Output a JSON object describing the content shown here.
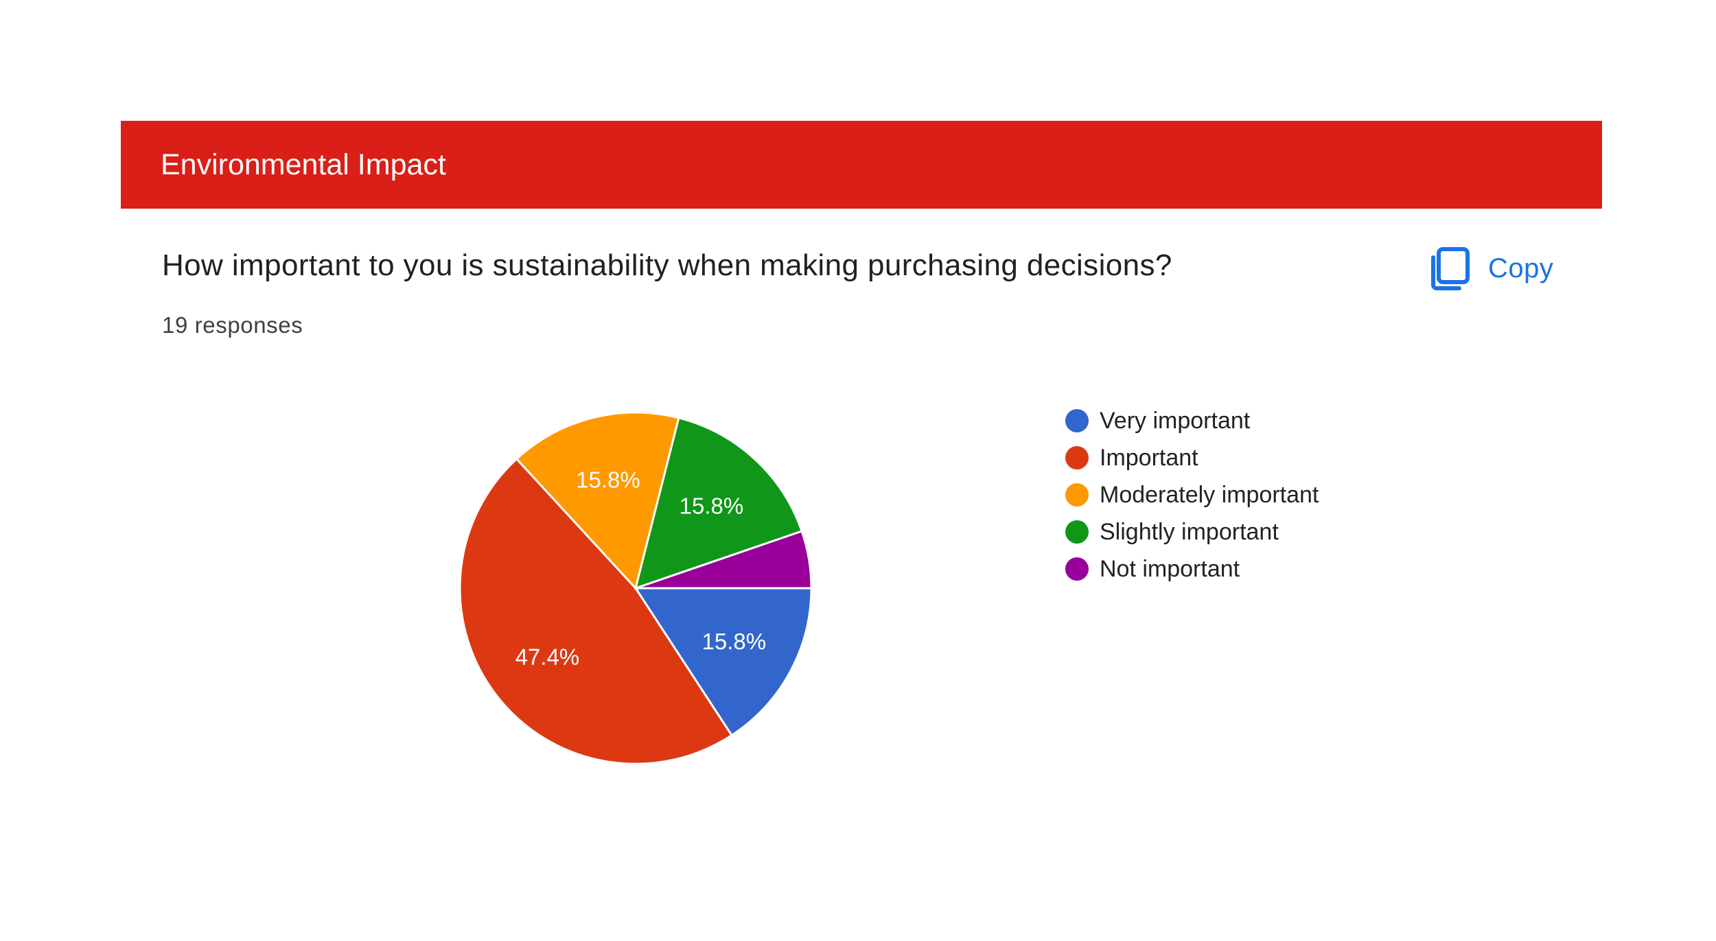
{
  "section": {
    "title": "Environmental Impact",
    "color": "#d91f18"
  },
  "question": {
    "title": "How important to you is sustainability when making purchasing decisions?",
    "responses": "19 responses"
  },
  "copy": {
    "label": "Copy",
    "icon": "copy-icon",
    "color": "#1a73e8"
  },
  "chart_data": {
    "type": "pie",
    "categories": [
      "Very important",
      "Important",
      "Moderately important",
      "Slightly important",
      "Not important"
    ],
    "values": [
      3,
      9,
      3,
      3,
      1
    ],
    "percent_labels": [
      "15.8%",
      "47.4%",
      "15.8%",
      "15.8%",
      ""
    ],
    "colors": [
      "#3366cc",
      "#dc3912",
      "#ff9900",
      "#109618",
      "#990099"
    ],
    "legend": "right"
  }
}
